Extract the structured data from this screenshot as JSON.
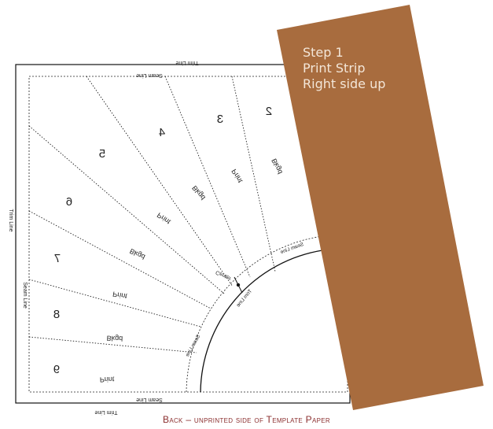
{
  "template": {
    "trim_line_label": "Trim Line",
    "seam_line_label": "Seam Line",
    "segment_numbers": [
      "2",
      "3",
      "4",
      "5",
      "6",
      "7",
      "8",
      "9"
    ],
    "segment_labels": [
      "Bkgd",
      "Print",
      "Bkgd",
      "Print",
      "Bkgd",
      "Print",
      "Bkgd",
      "Print"
    ],
    "center_label": "Center",
    "arc_labels": [
      "Seam Line",
      "Seam Line",
      "Trim Line"
    ]
  },
  "strip": {
    "color": "#a86c3e",
    "lines": [
      "Step 1",
      "Print Strip",
      "Right side up"
    ]
  },
  "caption": "Back – unprinted side of Template Paper"
}
